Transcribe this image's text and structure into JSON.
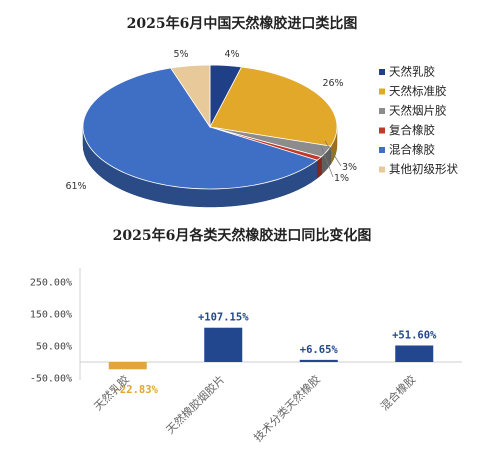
{
  "chart_data": [
    {
      "type": "pie",
      "title": "2025年6月中国天然橡胶进口类比图",
      "categories": [
        "天然乳胶",
        "天然标准胶",
        "天然烟片胶",
        "复合橡胶",
        "混合橡胶",
        "其他初级形状"
      ],
      "values": [
        4,
        26,
        3,
        1,
        61,
        5
      ],
      "value_labels": [
        "4%",
        "26%",
        "3%",
        "1%",
        "61%",
        "5%"
      ],
      "colors": [
        "#1f3f86",
        "#e2a82a",
        "#8c8c8c",
        "#c0392b",
        "#3e6fc4",
        "#e8c99a"
      ],
      "legend": "right"
    },
    {
      "type": "bar",
      "title": "2025年6月各类天然橡胶进口同比变化图",
      "categories": [
        "天然乳胶",
        "天然橡胶烟胶片",
        "技术分类天然橡胶",
        "混合橡胶"
      ],
      "values": [
        -22.83,
        107.15,
        6.65,
        51.6
      ],
      "value_labels": [
        "-22.83%",
        "+107.15%",
        "+6.65%",
        "+51.60%"
      ],
      "colors": [
        "#e0a637",
        "#22478e",
        "#22478e",
        "#22478e"
      ],
      "value_label_colors": [
        "#e0a637",
        "#22478e",
        "#22478e",
        "#22478e"
      ],
      "yticks": [
        "250.00%",
        "150.00%",
        "50.00%",
        "-50.00%"
      ],
      "ytick_values": [
        250,
        150,
        50,
        -50
      ],
      "ylim": [
        -50,
        250
      ],
      "grid": false
    }
  ]
}
